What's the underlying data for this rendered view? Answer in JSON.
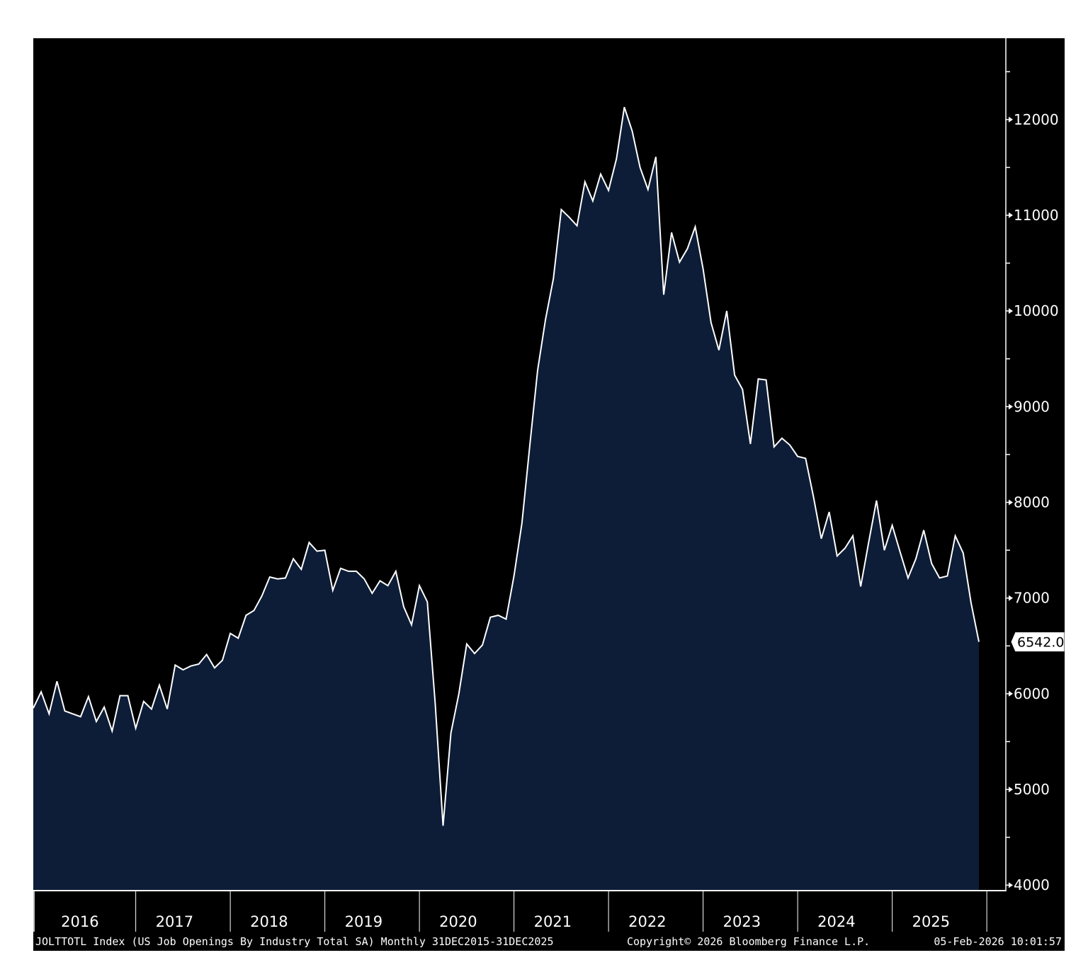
{
  "chart_data": {
    "type": "area",
    "title": "",
    "xlabel": "",
    "ylabel": "",
    "ylim": [
      3950,
      12850
    ],
    "xlim": [
      "2015-12",
      "2025-12"
    ],
    "yticks": [
      4000,
      5000,
      6000,
      7000,
      8000,
      9000,
      10000,
      11000,
      12000
    ],
    "year_labels": [
      "2016",
      "2017",
      "2018",
      "2019",
      "2020",
      "2021",
      "2022",
      "2023",
      "2024",
      "2025"
    ],
    "last_value_label": "6542.0",
    "grid": false,
    "colors": {
      "background": "#000000",
      "area_fill": "#0d1d38",
      "line": "#ffffff",
      "axis": "#ffffff"
    },
    "series": [
      {
        "x": [
          "2015-12",
          "2016-01",
          "2016-02",
          "2016-03",
          "2016-04",
          "2016-05",
          "2016-06",
          "2016-07",
          "2016-08",
          "2016-09",
          "2016-10",
          "2016-11",
          "2016-12",
          "2017-01",
          "2017-02",
          "2017-03",
          "2017-04",
          "2017-05",
          "2017-06",
          "2017-07",
          "2017-08",
          "2017-09",
          "2017-10",
          "2017-11",
          "2017-12",
          "2018-01",
          "2018-02",
          "2018-03",
          "2018-04",
          "2018-05",
          "2018-06",
          "2018-07",
          "2018-08",
          "2018-09",
          "2018-10",
          "2018-11",
          "2018-12",
          "2019-01",
          "2019-02",
          "2019-03",
          "2019-04",
          "2019-05",
          "2019-06",
          "2019-07",
          "2019-08",
          "2019-09",
          "2019-10",
          "2019-11",
          "2019-12",
          "2020-01",
          "2020-02",
          "2020-03",
          "2020-04",
          "2020-05",
          "2020-06",
          "2020-07",
          "2020-08",
          "2020-09",
          "2020-10",
          "2020-11",
          "2020-12",
          "2021-01",
          "2021-02",
          "2021-03",
          "2021-04",
          "2021-05",
          "2021-06",
          "2021-07",
          "2021-08",
          "2021-09",
          "2021-10",
          "2021-11",
          "2021-12",
          "2022-01",
          "2022-02",
          "2022-03",
          "2022-04",
          "2022-05",
          "2022-06",
          "2022-07",
          "2022-08",
          "2022-09",
          "2022-10",
          "2022-11",
          "2022-12",
          "2023-01",
          "2023-02",
          "2023-03",
          "2023-04",
          "2023-05",
          "2023-06",
          "2023-07",
          "2023-08",
          "2023-09",
          "2023-10",
          "2023-11",
          "2023-12",
          "2024-01",
          "2024-02",
          "2024-03",
          "2024-04",
          "2024-05",
          "2024-06",
          "2024-07",
          "2024-08",
          "2024-09",
          "2024-10",
          "2024-11",
          "2024-12",
          "2025-01",
          "2025-02",
          "2025-03",
          "2025-04",
          "2025-05",
          "2025-06",
          "2025-07",
          "2025-08",
          "2025-09",
          "2025-10",
          "2025-11",
          "2025-12"
        ],
        "values": [
          5850,
          6020,
          5790,
          6130,
          5820,
          5790,
          5760,
          5970,
          5710,
          5860,
          5610,
          5980,
          5980,
          5640,
          5920,
          5840,
          6090,
          5840,
          6300,
          6250,
          6290,
          6310,
          6410,
          6270,
          6350,
          6630,
          6580,
          6820,
          6870,
          7020,
          7220,
          7200,
          7210,
          7410,
          7300,
          7580,
          7490,
          7500,
          7080,
          7310,
          7280,
          7280,
          7200,
          7050,
          7180,
          7130,
          7280,
          6910,
          6720,
          7130,
          6960,
          5900,
          4620,
          5590,
          6000,
          6520,
          6420,
          6510,
          6800,
          6820,
          6780,
          7230,
          7780,
          8590,
          9380,
          9910,
          10340,
          11060,
          10980,
          10890,
          11350,
          11150,
          11430,
          11260,
          11590,
          12130,
          11880,
          11500,
          11270,
          11610,
          10170,
          10820,
          10510,
          10650,
          10880,
          10440,
          9880,
          9590,
          10000,
          9330,
          9180,
          8610,
          9290,
          9280,
          8580,
          8670,
          8600,
          8480,
          8460,
          8060,
          7620,
          7900,
          7440,
          7520,
          7650,
          7120,
          7580,
          8020,
          7500,
          7760,
          7480,
          7210,
          7410,
          7710,
          7360,
          7210,
          7230,
          7650,
          7470,
          6950,
          6542
        ]
      }
    ]
  },
  "footer": {
    "left": "JOLTTOTL Index (US Job Openings By Industry Total SA) Monthly 31DEC2015-31DEC2025",
    "middle": "Copyright© 2026 Bloomberg Finance L.P.",
    "right": "05-Feb-2026 10:01:57"
  }
}
